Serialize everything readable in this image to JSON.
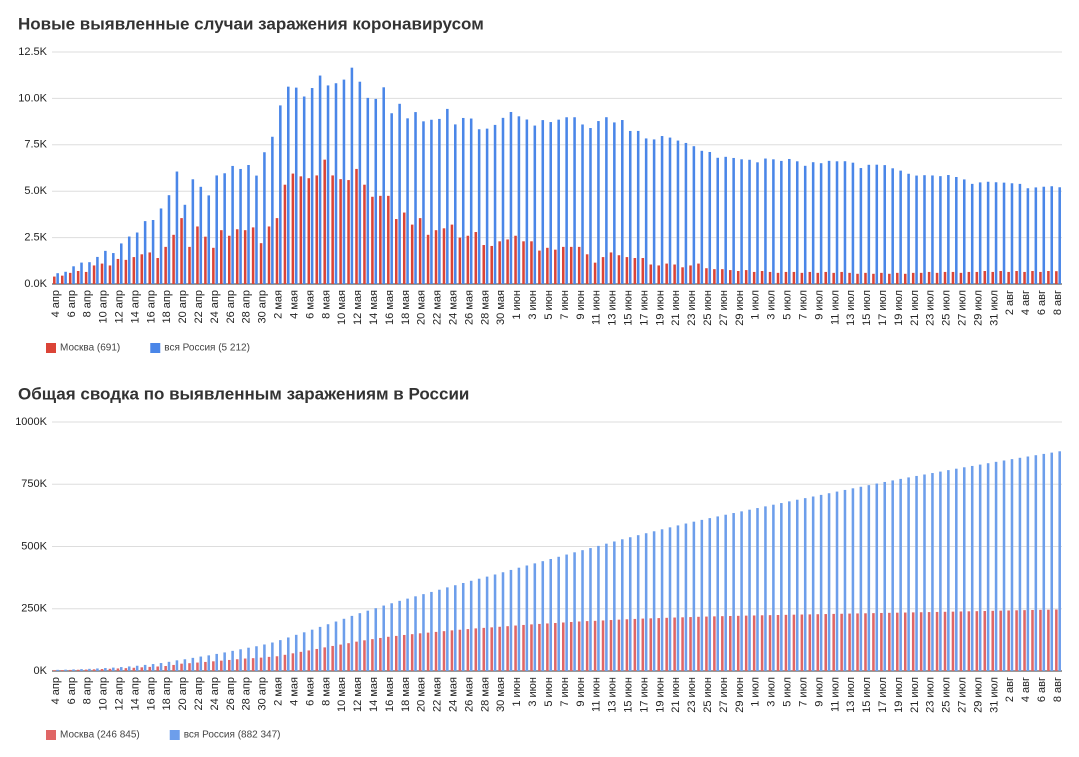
{
  "charts": [
    {
      "type": "bar",
      "title": "Новые выявленные случаи заражения коронавирусом",
      "categories": [
        "4 апр",
        null,
        "6 апр",
        null,
        "8 апр",
        null,
        "10 апр",
        null,
        "12 апр",
        null,
        "14 апр",
        null,
        "16 апр",
        null,
        "18 апр",
        null,
        "20 апр",
        null,
        "22 апр",
        null,
        "24 апр",
        null,
        "26 апр",
        null,
        "28 апр",
        null,
        "30 апр",
        null,
        "2 мая",
        null,
        "4 мая",
        null,
        "6 мая",
        null,
        "8 мая",
        null,
        "10 мая",
        null,
        "12 мая",
        null,
        "14 мая",
        null,
        "16 мая",
        null,
        "18 мая",
        null,
        "20 мая",
        null,
        "22 мая",
        null,
        "24 мая",
        null,
        "26 мая",
        null,
        "28 мая",
        null,
        "30 мая",
        null,
        "1 июн",
        null,
        "3 июн",
        null,
        "5 июн",
        null,
        "7 июн",
        null,
        "9 июн",
        null,
        "11 июн",
        null,
        "13 июн",
        null,
        "15 июн",
        null,
        "17 июн",
        null,
        "19 июн",
        null,
        "21 июн",
        null,
        "23 июн",
        null,
        "25 июн",
        null,
        "27 июн",
        null,
        "29 июн",
        null,
        "1 июл",
        null,
        "3 июл",
        null,
        "5 июл",
        null,
        "7 июл",
        null,
        "9 июл",
        null,
        "11 июл",
        null,
        "13 июл",
        null,
        "15 июл",
        null,
        "17 июл",
        null,
        "19 июл",
        null,
        "21 июл",
        null,
        "23 июл",
        null,
        "25 июл",
        null,
        "27 июл",
        null,
        "29 июл",
        null,
        "31 июл",
        null,
        "2 авг",
        null,
        "4 авг",
        null,
        "6 авг",
        null,
        "8 авг"
      ],
      "series": [
        {
          "name": "Москва (691)",
          "color": "#db4437",
          "values": [
            400,
            450,
            600,
            700,
            650,
            1000,
            1100,
            1000,
            1350,
            1300,
            1450,
            1600,
            1700,
            1400,
            2000,
            2650,
            3550,
            2000,
            3100,
            2550,
            1950,
            2900,
            2600,
            2950,
            2900,
            3050,
            2200,
            3100,
            3550,
            5350,
            5950,
            5800,
            5700,
            5850,
            6700,
            5850,
            5650,
            5600,
            6200,
            5350,
            4700,
            4750,
            4750,
            3500,
            3850,
            3200,
            3550,
            2650,
            2900,
            3000,
            3200,
            2500,
            2600,
            2800,
            2100,
            2050,
            2300,
            2400,
            2600,
            2300,
            2300,
            1800,
            1950,
            1850,
            2000,
            2000,
            2000,
            1600,
            1150,
            1450,
            1700,
            1550,
            1450,
            1400,
            1400,
            1050,
            1000,
            1100,
            1050,
            900,
            1000,
            1100,
            850,
            800,
            800,
            750,
            700,
            750,
            650,
            700,
            650,
            600,
            650,
            650,
            600,
            650,
            600,
            650,
            600,
            650,
            600,
            550,
            600,
            550,
            600,
            550,
            600,
            550,
            600,
            600,
            650,
            600,
            650,
            650,
            600,
            650,
            650,
            700,
            650,
            700,
            650,
            700,
            650,
            700,
            650,
            700,
            691
          ]
        },
        {
          "name": "вся Россия (5 212)",
          "color": "#4a86e8",
          "values": [
            582,
            658,
            954,
            1154,
            1175,
            1459,
            1786,
            1667,
            2186,
            2558,
            2774,
            3388,
            3448,
            4070,
            4785,
            6060,
            4268,
            5642,
            5236,
            4774,
            5849,
            5966,
            6361,
            6198,
            6411,
            5841,
            7099,
            7933,
            9623,
            10633,
            10581,
            10102,
            10559,
            11231,
            10699,
            10817,
            11012,
            11656,
            10899,
            10028,
            9974,
            10598,
            9200,
            9709,
            8926,
            9263,
            8764,
            8849,
            8894,
            9434,
            8599,
            8946,
            8915,
            8338,
            8371,
            8572,
            8952,
            9268,
            9035,
            8863,
            8536,
            8831,
            8726,
            8855,
            8984,
            8985,
            8595,
            8404,
            8779,
            8987,
            8706,
            8835,
            8246,
            8248,
            7843,
            7790,
            7972,
            7889,
            7728,
            7600,
            7425,
            7176,
            7113,
            6800,
            6852,
            6791,
            6719,
            6693,
            6556,
            6760,
            6718,
            6632,
            6736,
            6611,
            6368,
            6562,
            6509,
            6635,
            6611,
            6615,
            6537,
            6248,
            6422,
            6428,
            6406,
            6234,
            6109,
            5940,
            5842,
            5862,
            5848,
            5811,
            5871,
            5765,
            5635,
            5395,
            5475,
            5509,
            5482,
            5462,
            5427,
            5394,
            5159,
            5204,
            5241,
            5267,
            5212
          ]
        }
      ],
      "ylim": [
        0,
        12500
      ],
      "yticks": [
        {
          "value": 0,
          "label": "0.0K"
        },
        {
          "value": 2500,
          "label": "2.5K"
        },
        {
          "value": 5000,
          "label": "5.0K"
        },
        {
          "value": 7500,
          "label": "7.5K"
        },
        {
          "value": 10000,
          "label": "10.0K"
        },
        {
          "value": 12500,
          "label": "12.5K"
        }
      ],
      "grid": true,
      "legend": "bottom"
    },
    {
      "type": "bar",
      "title": "Общая сводка по выявленным заражениям в России",
      "categories": [
        "4 апр",
        null,
        "6 апр",
        null,
        "8 апр",
        null,
        "10 апр",
        null,
        "12 апр",
        null,
        "14 апр",
        null,
        "16 апр",
        null,
        "18 апр",
        null,
        "20 апр",
        null,
        "22 апр",
        null,
        "24 апр",
        null,
        "26 апр",
        null,
        "28 апр",
        null,
        "30 апр",
        null,
        "2 мая",
        null,
        "4 мая",
        null,
        "6 мая",
        null,
        "8 мая",
        null,
        "10 мая",
        null,
        "12 мая",
        null,
        "14 мая",
        null,
        "16 мая",
        null,
        "18 мая",
        null,
        "20 мая",
        null,
        "22 мая",
        null,
        "24 мая",
        null,
        "26 мая",
        null,
        "28 мая",
        null,
        "30 мая",
        null,
        "1 июн",
        null,
        "3 июн",
        null,
        "5 июн",
        null,
        "7 июн",
        null,
        "9 июн",
        null,
        "11 июн",
        null,
        "13 июн",
        null,
        "15 июн",
        null,
        "17 июн",
        null,
        "19 июн",
        null,
        "21 июн",
        null,
        "23 июн",
        null,
        "25 июн",
        null,
        "27 июн",
        null,
        "29 июн",
        null,
        "1 июл",
        null,
        "3 июл",
        null,
        "5 июл",
        null,
        "7 июл",
        null,
        "9 июл",
        null,
        "11 июл",
        null,
        "13 июл",
        null,
        "15 июл",
        null,
        "17 июл",
        null,
        "19 июл",
        null,
        "21 июл",
        null,
        "23 июл",
        null,
        "25 июл",
        null,
        "27 июл",
        null,
        "29 июл",
        null,
        "31 июл",
        null,
        "2 авг",
        null,
        "4 авг",
        null,
        "6 авг",
        null,
        "8 авг"
      ],
      "series": [
        {
          "name": "Москва (246 845)",
          "color": "#e06666",
          "values": [
            3357,
            3744,
            4335,
            5032,
            5692,
            6700,
            7822,
            8850,
            10200,
            11500,
            12950,
            14776,
            16500,
            18100,
            20100,
            24300,
            29433,
            31400,
            33900,
            36400,
            38900,
            41650,
            44300,
            47200,
            50100,
            51500,
            53739,
            56700,
            59200,
            65000,
            71000,
            76888,
            82600,
            88500,
            94800,
            100600,
            106100,
            111700,
            117900,
            123300,
            128000,
            132700,
            137400,
            140900,
            144700,
            147900,
            151400,
            154100,
            157000,
            160000,
            163200,
            165700,
            168300,
            171100,
            173200,
            175300,
            177600,
            180000,
            182600,
            184900,
            187200,
            189000,
            191000,
            192800,
            194800,
            196800,
            198800,
            200400,
            201500,
            203000,
            204700,
            206200,
            207700,
            209100,
            210500,
            211500,
            212500,
            213600,
            214700,
            215600,
            216600,
            217700,
            218600,
            219400,
            220200,
            220900,
            221600,
            222400,
            223000,
            223700,
            224300,
            224900,
            225500,
            226200,
            226800,
            227400,
            228000,
            228700,
            229300,
            229900,
            230600,
            231200,
            231800,
            232400,
            233000,
            233600,
            234200,
            234800,
            235400,
            236000,
            236600,
            237200,
            237800,
            238400,
            239100,
            239700,
            240300,
            241000,
            241700,
            242400,
            243100,
            243800,
            244400,
            245000,
            245600,
            246150,
            246845
          ]
        },
        {
          "name": "вся Россия (882 347)",
          "color": "#6d9eeb",
          "values": [
            4731,
            5389,
            6343,
            7497,
            8672,
            10131,
            11917,
            13584,
            15770,
            18328,
            21102,
            24490,
            27938,
            32008,
            36793,
            42853,
            47121,
            52763,
            57999,
            62773,
            68622,
            74588,
            80949,
            87147,
            93558,
            99399,
            106498,
            114431,
            124054,
            134687,
            145268,
            155370,
            165929,
            177160,
            187859,
            198676,
            209688,
            221344,
            232243,
            242271,
            252245,
            262843,
            272043,
            281752,
            290678,
            299941,
            308705,
            317554,
            326448,
            335882,
            344481,
            353427,
            362342,
            370680,
            379051,
            387623,
            396575,
            405843,
            414878,
            423741,
            432277,
            441108,
            449834,
            458689,
            467673,
            476658,
            485253,
            493657,
            502436,
            511423,
            520129,
            528964,
            537210,
            545458,
            553301,
            561091,
            569063,
            576952,
            584680,
            592280,
            599705,
            606881,
            613994,
            620794,
            627646,
            634437,
            641156,
            647849,
            654405,
            661165,
            667883,
            674515,
            681251,
            687862,
            694230,
            700792,
            707301,
            713936,
            720547,
            727162,
            733699,
            739947,
            746369,
            752797,
            759203,
            765437,
            771546,
            777486,
            783328,
            789190,
            795038,
            800849,
            806720,
            812485,
            818120,
            823515,
            828990,
            834499,
            839981,
            845443,
            850870,
            856264,
            861423,
            866627,
            871868,
            877080,
            882347
          ]
        }
      ],
      "ylim": [
        0,
        1000000
      ],
      "yticks": [
        {
          "value": 0,
          "label": "0K"
        },
        {
          "value": 250000,
          "label": "250K"
        },
        {
          "value": 500000,
          "label": "500K"
        },
        {
          "value": 750000,
          "label": "750K"
        },
        {
          "value": 1000000,
          "label": "1000K"
        }
      ],
      "grid": true,
      "legend": "bottom"
    }
  ]
}
